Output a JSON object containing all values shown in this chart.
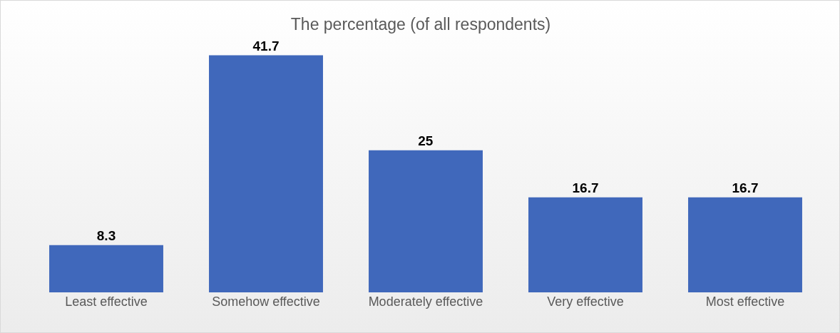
{
  "chart_data": {
    "type": "bar",
    "title": "The percentage (of all respondents)",
    "categories": [
      "Least effective",
      "Somehow effective",
      "Moderately effective",
      "Very effective",
      "Most effective"
    ],
    "values": [
      8.3,
      41.7,
      25,
      16.7,
      16.7
    ],
    "color": "#4068bb",
    "data_labels": true,
    "grid": false,
    "legend": false,
    "tick_labels": "x"
  }
}
